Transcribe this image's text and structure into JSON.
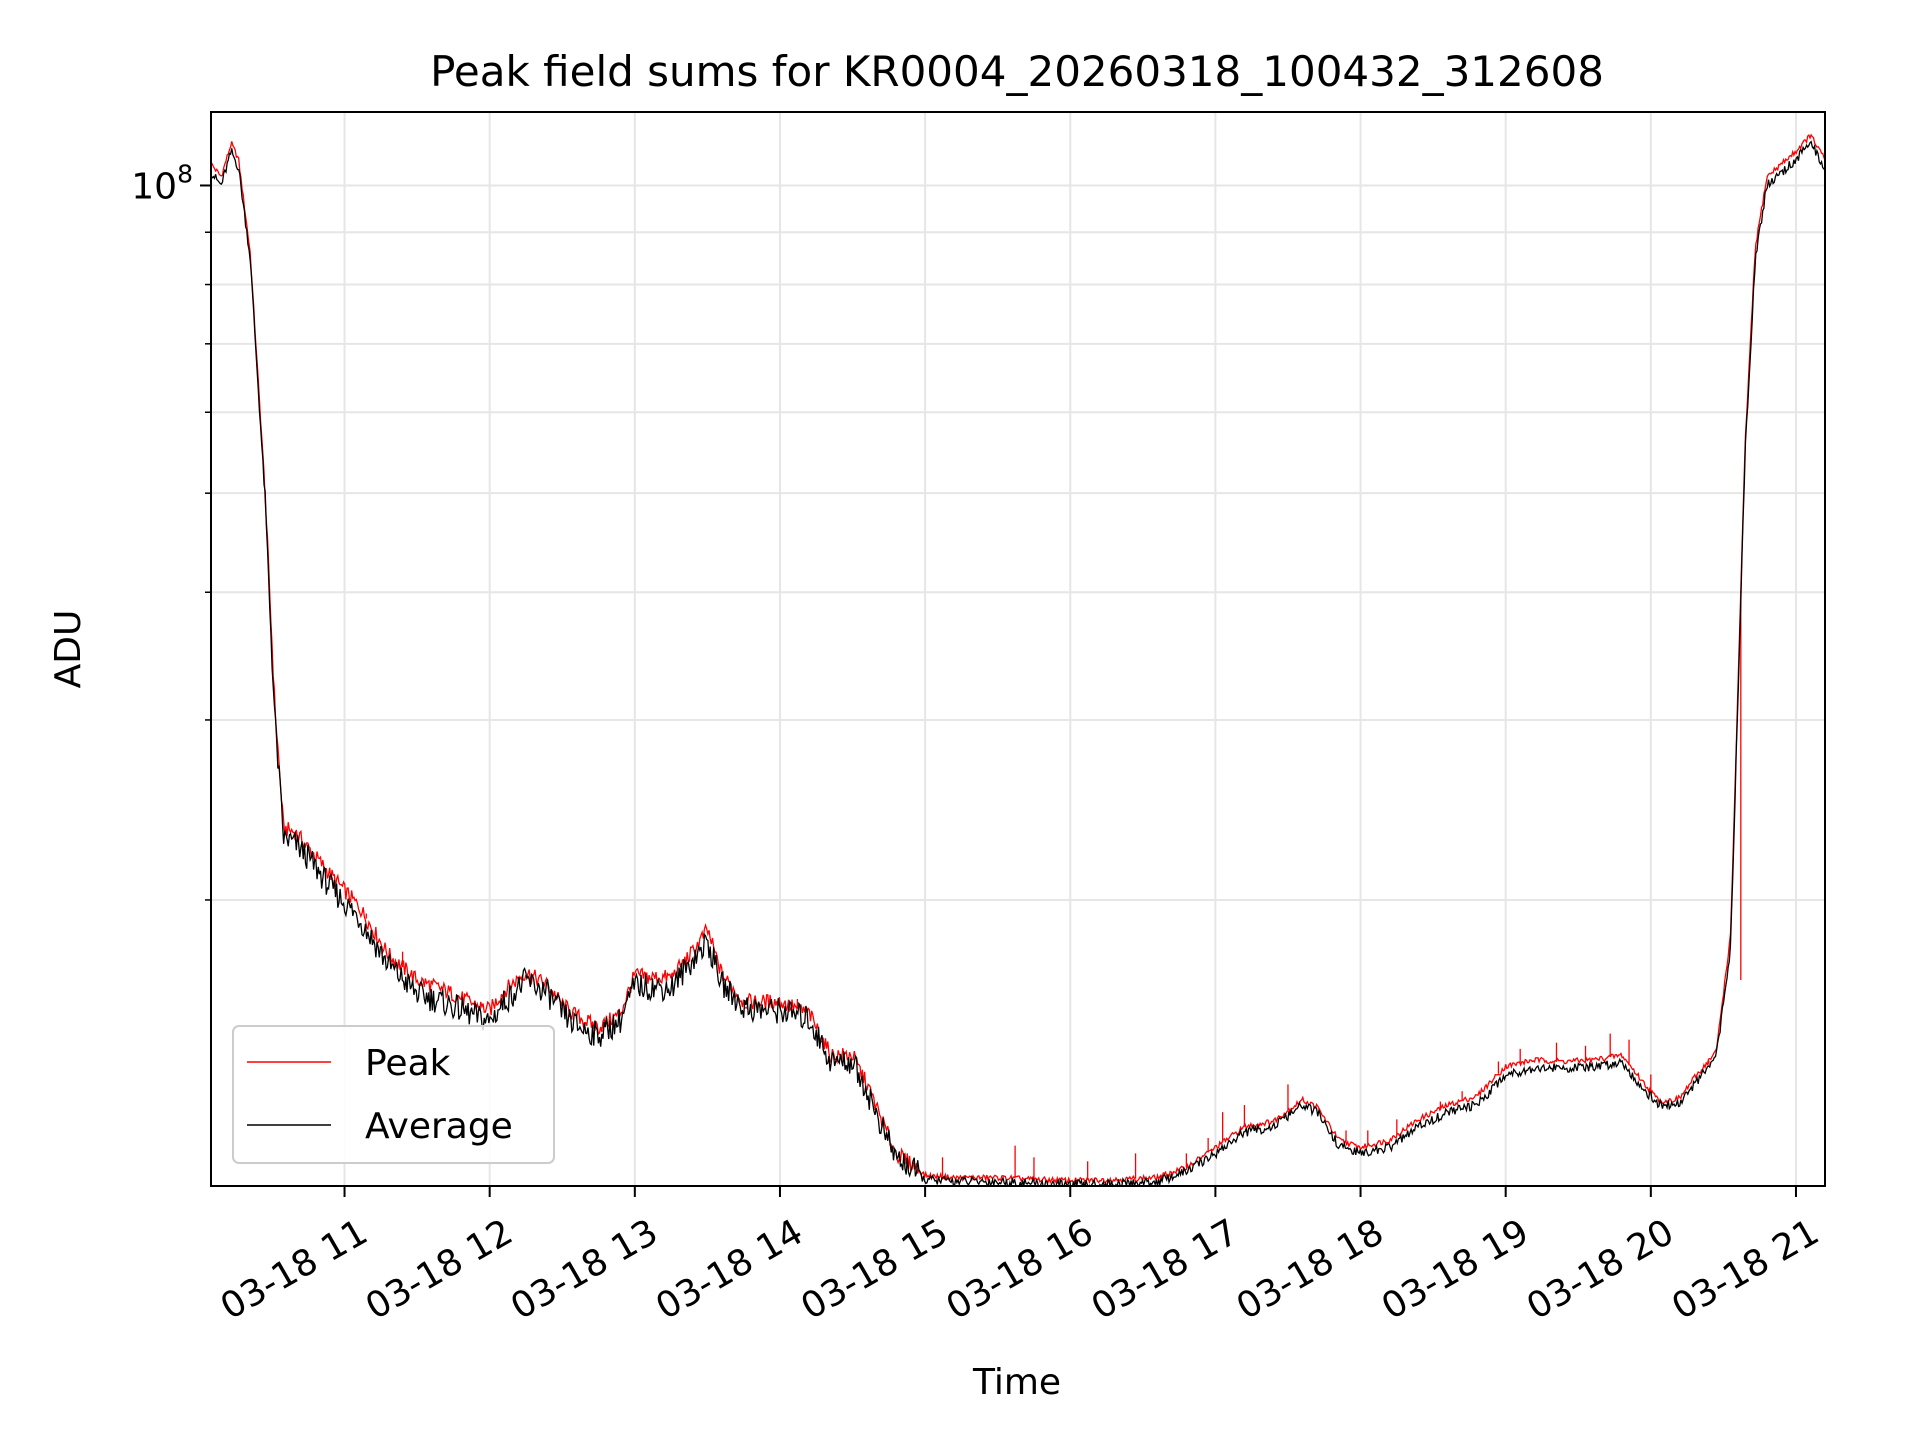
{
  "chart_data": {
    "type": "line",
    "title": "Peak field sums for KR0004_20260318_100432_312608",
    "xlabel": "Time",
    "ylabel": "ADU",
    "yscale": "log",
    "grid": true,
    "legend_position": "lower-left",
    "xlim_hours": [
      10.08,
      21.2
    ],
    "ylim": [
      10500000,
      118000000
    ],
    "x_ticks": [
      {
        "hour": 11,
        "label": "03-18 11"
      },
      {
        "hour": 12,
        "label": "03-18 12"
      },
      {
        "hour": 13,
        "label": "03-18 13"
      },
      {
        "hour": 14,
        "label": "03-18 14"
      },
      {
        "hour": 15,
        "label": "03-18 15"
      },
      {
        "hour": 16,
        "label": "03-18 16"
      },
      {
        "hour": 17,
        "label": "03-18 17"
      },
      {
        "hour": 18,
        "label": "03-18 18"
      },
      {
        "hour": 19,
        "label": "03-18 19"
      },
      {
        "hour": 20,
        "label": "03-18 20"
      },
      {
        "hour": 21,
        "label": "03-18 21"
      }
    ],
    "y_major_ticks": [
      {
        "value": 100000000,
        "base": "10",
        "exp": "8"
      }
    ],
    "y_minor_ticks": [
      20000000,
      30000000,
      40000000,
      50000000,
      60000000,
      70000000,
      80000000,
      90000000
    ],
    "series": [
      {
        "name": "Peak",
        "color": "#ff0000"
      },
      {
        "name": "Average",
        "color": "#000000"
      }
    ],
    "x_hours": [
      10.08,
      10.15,
      10.22,
      10.27,
      10.35,
      10.45,
      10.52,
      10.58,
      10.66,
      10.75,
      10.9,
      11.1,
      11.3,
      11.5,
      11.7,
      11.9,
      12.0,
      12.1,
      12.25,
      12.4,
      12.5,
      12.6,
      12.75,
      12.9,
      13.0,
      13.1,
      13.25,
      13.4,
      13.5,
      13.6,
      13.75,
      13.9,
      14.0,
      14.2,
      14.35,
      14.5,
      14.6,
      14.7,
      14.8,
      14.92,
      15.0,
      15.2,
      15.5,
      15.8,
      16.0,
      16.3,
      16.6,
      16.8,
      17.0,
      17.2,
      17.4,
      17.6,
      17.7,
      17.85,
      18.0,
      18.2,
      18.4,
      18.6,
      18.8,
      19.0,
      19.2,
      19.4,
      19.6,
      19.8,
      19.95,
      20.05,
      20.1,
      20.2,
      20.3,
      20.45,
      20.55,
      20.65,
      20.72,
      20.8,
      20.9,
      21.0,
      21.1,
      21.2
    ],
    "average": [
      103000000,
      100000000,
      108000000,
      104000000,
      85000000,
      50000000,
      30000000,
      23000000,
      22700000,
      22000000,
      20600000,
      19200000,
      17300000,
      16200000,
      15850000,
      15400000,
      15200000,
      15900000,
      16700000,
      16200000,
      15500000,
      15050000,
      14750000,
      15250000,
      16500000,
      16450000,
      16400000,
      17500000,
      18200000,
      16550000,
      15700000,
      15600000,
      15600000,
      15300000,
      13900000,
      13900000,
      13000000,
      12000000,
      11200000,
      10900000,
      10650000,
      10620000,
      10600000,
      10550000,
      10530000,
      10550000,
      10600000,
      10850000,
      11300000,
      11850000,
      12000000,
      12600000,
      12400000,
      11500000,
      11300000,
      11450000,
      12000000,
      12400000,
      12600000,
      13500000,
      13700000,
      13700000,
      13700000,
      13900000,
      13050000,
      12650000,
      12600000,
      12650000,
      13200000,
      14000000,
      18000000,
      55000000,
      85000000,
      100000000,
      103000000,
      106000000,
      110000000,
      104000000
    ],
    "peak": [
      105000000,
      102000000,
      110000000,
      106000000,
      86000000,
      51000000,
      31000000,
      23500000,
      23300000,
      22500000,
      21200000,
      19700000,
      17700000,
      16700000,
      16300000,
      15800000,
      15600000,
      16300000,
      17000000,
      16500000,
      15800000,
      15400000,
      15000000,
      15500000,
      16900000,
      16800000,
      16800000,
      17800000,
      18700000,
      16900000,
      15900000,
      15900000,
      15900000,
      15500000,
      14100000,
      14100000,
      13200000,
      12200000,
      11300000,
      11000000,
      10750000,
      10700000,
      10700000,
      10650000,
      10630000,
      10650000,
      10700000,
      10950000,
      11450000,
      12000000,
      12150000,
      12750000,
      12550000,
      11650000,
      11450000,
      11650000,
      12200000,
      12600000,
      12850000,
      13750000,
      13950000,
      13900000,
      13950000,
      14100000,
      13250000,
      12750000,
      12700000,
      12800000,
      13400000,
      14200000,
      18500000,
      56000000,
      87000000,
      102000000,
      105000000,
      108000000,
      112000000,
      106000000
    ],
    "peak_spikes": [
      {
        "hour": 11.15,
        "value": 19400000
      },
      {
        "hour": 11.4,
        "value": 17800000
      },
      {
        "hour": 14.12,
        "value": 16000000
      },
      {
        "hour": 15.12,
        "value": 11200000
      },
      {
        "hour": 15.62,
        "value": 11500000
      },
      {
        "hour": 15.75,
        "value": 11200000
      },
      {
        "hour": 16.12,
        "value": 11100000
      },
      {
        "hour": 16.45,
        "value": 11300000
      },
      {
        "hour": 16.8,
        "value": 11300000
      },
      {
        "hour": 16.95,
        "value": 11700000
      },
      {
        "hour": 17.05,
        "value": 12400000
      },
      {
        "hour": 17.2,
        "value": 12600000
      },
      {
        "hour": 17.5,
        "value": 13200000
      },
      {
        "hour": 17.9,
        "value": 11900000
      },
      {
        "hour": 18.05,
        "value": 11900000
      },
      {
        "hour": 18.25,
        "value": 12200000
      },
      {
        "hour": 18.55,
        "value": 12700000
      },
      {
        "hour": 18.7,
        "value": 13000000
      },
      {
        "hour": 18.95,
        "value": 13900000
      },
      {
        "hour": 19.1,
        "value": 14300000
      },
      {
        "hour": 19.35,
        "value": 14500000
      },
      {
        "hour": 19.55,
        "value": 14400000
      },
      {
        "hour": 19.72,
        "value": 14800000
      },
      {
        "hour": 19.85,
        "value": 14600000
      },
      {
        "hour": 20.0,
        "value": 13500000
      },
      {
        "hour": 20.4,
        "value": 13800000
      },
      {
        "hour": 20.62,
        "value": 16700000
      }
    ]
  }
}
